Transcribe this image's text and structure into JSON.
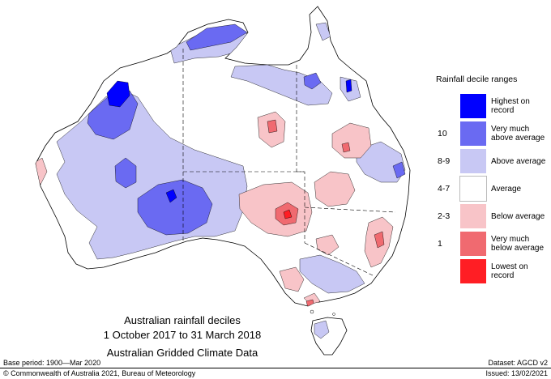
{
  "map": {
    "title_lines": [
      "Australian rainfall deciles",
      "1 October 2017 to 31 March 2018",
      "Australian Gridded Climate Data"
    ]
  },
  "legend": {
    "title": "Rainfall decile ranges",
    "rows": [
      {
        "code": "",
        "label": "Highest on record",
        "color": "#0000ff"
      },
      {
        "code": "10",
        "label": "Very much above average",
        "color": "#6a6af2"
      },
      {
        "code": "8-9",
        "label": "Above average",
        "color": "#c8c8f4"
      },
      {
        "code": "4-7",
        "label": "Average",
        "color": "#ffffff"
      },
      {
        "code": "2-3",
        "label": "Below average",
        "color": "#f8c4c8"
      },
      {
        "code": "1",
        "label": "Very much below average",
        "color": "#f06a70"
      },
      {
        "code": "",
        "label": "Lowest on record",
        "color": "#ff1e24"
      }
    ]
  },
  "footer": {
    "base_period": "Base period: 1900—Mar 2020",
    "dataset": "Dataset: AGCD v2",
    "copyright": "© Commonwealth of Australia 2021, Bureau of Meteorology",
    "issued": "Issued: 13/02/2021"
  }
}
